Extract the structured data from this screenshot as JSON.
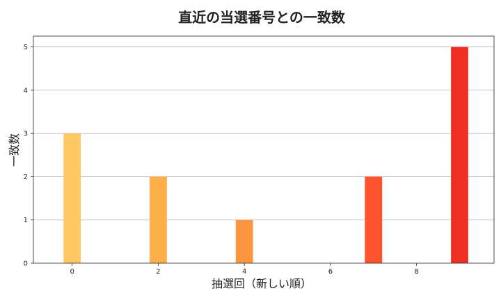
{
  "chart_data": {
    "type": "bar",
    "title": "直近の当選番号との一致数",
    "xlabel": "抽選回（新しい順）",
    "ylabel": "一致数",
    "x": [
      0,
      1,
      2,
      3,
      4,
      5,
      6,
      7,
      8,
      9
    ],
    "values": [
      3,
      null,
      2,
      null,
      1,
      null,
      null,
      2,
      null,
      5
    ],
    "colors": [
      "#fec863",
      null,
      "#fdaf4c",
      null,
      "#fd9640",
      null,
      null,
      "#fc532d",
      null,
      "#ef2f22"
    ],
    "xticks": [
      0,
      2,
      4,
      6,
      8
    ],
    "yticks": [
      0,
      1,
      2,
      3,
      4,
      5
    ],
    "xlim": [
      -0.9,
      9.8
    ],
    "ylim": [
      0,
      5.25
    ],
    "grid": "y"
  }
}
